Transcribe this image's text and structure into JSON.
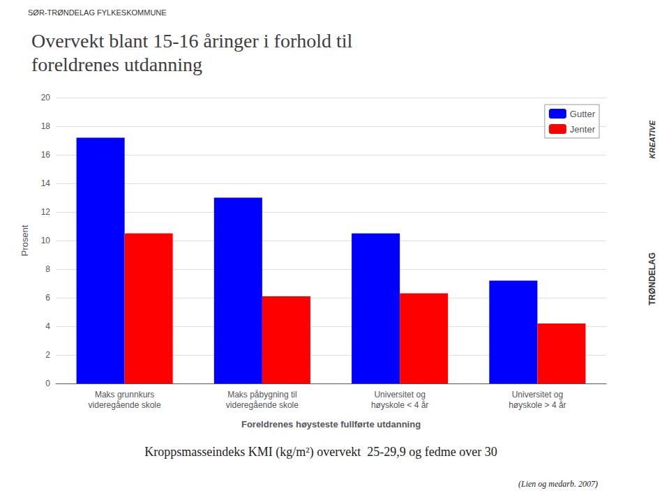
{
  "chart_data": {
    "type": "bar",
    "title": "Overvekt blant 15-16 åringer i forhold til\nforeldrenes utdanning",
    "categories": [
      "Maks grunnkurs\nvideregående skole",
      "Maks påbygning til\nvideregående skole",
      "Universitet og\nhøyskole < 4 år",
      "Universitet og\nhøyskole > 4 år"
    ],
    "series": [
      {
        "name": "Gutter",
        "color": "#0000FF",
        "values": [
          17.2,
          13.0,
          10.5,
          7.2
        ]
      },
      {
        "name": "Jenter",
        "color": "#FF0000",
        "values": [
          10.5,
          6.1,
          6.3,
          4.2
        ]
      }
    ],
    "xlabel": "Foreldrenes høysteste fullførte utdanning",
    "ylabel": "Prosent",
    "ylim": [
      0,
      20
    ],
    "yticks": [
      0,
      2,
      4,
      6,
      8,
      10,
      12,
      14,
      16,
      18,
      20
    ],
    "grid": true,
    "legend": "upper right",
    "annotations": [
      "SØR-TRØNDELAG FYLKESKOMMUNE",
      "KREATIVE",
      "TRØNDELAG",
      "Kroppsmasseindeks KMI (kg/m²) overvekt  25-29,9 og fedme over 30",
      "(Lien og medarb. 2007)"
    ]
  }
}
